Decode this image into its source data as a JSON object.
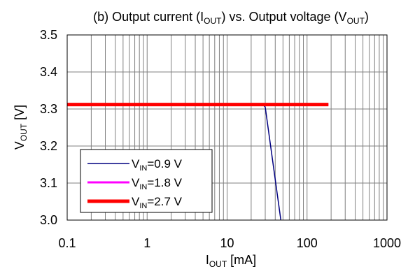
{
  "chart_data": {
    "type": "line",
    "title": {
      "prefix": "(b) Output current (I",
      "sub1": "OUT",
      "mid": ") vs. Output voltage (V",
      "sub2": "OUT",
      "suffix": ")"
    },
    "xlabel": {
      "main": "I",
      "sub": "OUT",
      "rest": " [mA]"
    },
    "ylabel": {
      "main": "V",
      "sub": "OUT",
      "rest": " [V]"
    },
    "x_scale": "log",
    "xlim": [
      0.1,
      1000
    ],
    "ylim": [
      3.0,
      3.5
    ],
    "x_ticks": [
      {
        "value": 0.1,
        "label": "0.1"
      },
      {
        "value": 1,
        "label": "1"
      },
      {
        "value": 10,
        "label": "10"
      },
      {
        "value": 100,
        "label": "100"
      },
      {
        "value": 1000,
        "label": "1000"
      }
    ],
    "y_ticks": [
      {
        "value": 3.0,
        "label": "3.0"
      },
      {
        "value": 3.1,
        "label": "3.1"
      },
      {
        "value": 3.2,
        "label": "3.2"
      },
      {
        "value": 3.3,
        "label": "3.3"
      },
      {
        "value": 3.4,
        "label": "3.4"
      },
      {
        "value": 3.5,
        "label": "3.5"
      }
    ],
    "grid": true,
    "legend_position": "bottom-left",
    "series": [
      {
        "name": {
          "main": "V",
          "sub": "IN",
          "rest": "=0.9 V"
        },
        "color": "#000080",
        "points": [
          [
            0.1,
            3.312
          ],
          [
            28,
            3.312
          ],
          [
            30,
            3.305
          ],
          [
            47,
            3.0
          ]
        ]
      },
      {
        "name": {
          "main": "V",
          "sub": "IN",
          "rest": "=1.8 V"
        },
        "color": "#ff00ff",
        "points": [
          [
            0.1,
            3.312
          ],
          [
            185,
            3.312
          ]
        ]
      },
      {
        "name": {
          "main": "V",
          "sub": "IN",
          "rest": "=2.7 V"
        },
        "color": "#ff0000",
        "points": [
          [
            0.1,
            3.312
          ],
          [
            185,
            3.312
          ]
        ]
      }
    ]
  }
}
